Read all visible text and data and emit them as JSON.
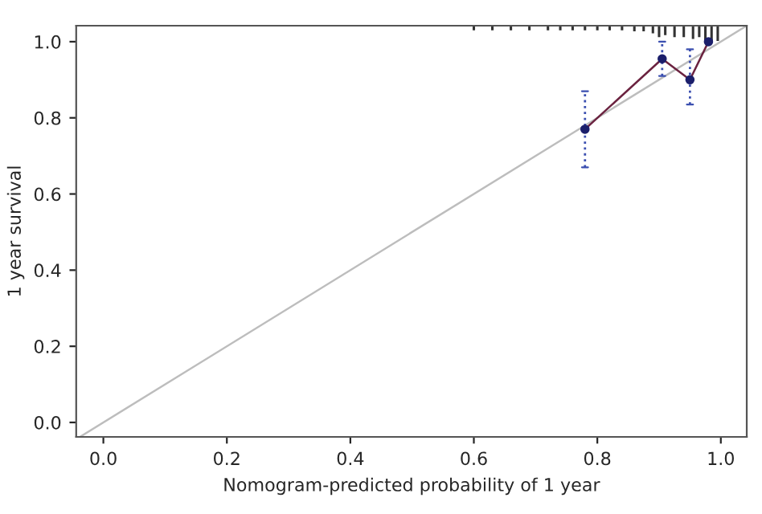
{
  "chart_data": {
    "type": "line",
    "xlabel": "Nomogram-predicted probability of 1 year",
    "ylabel": "1 year survival",
    "xlim": [
      -0.044,
      1.042
    ],
    "ylim": [
      -0.038,
      1.042
    ],
    "xticks": [
      {
        "value": 0,
        "label": "0.0"
      },
      {
        "value": 0.2,
        "label": "0.2"
      },
      {
        "value": 0.4,
        "label": "0.4"
      },
      {
        "value": 0.6,
        "label": "0.6"
      },
      {
        "value": 0.8,
        "label": "0.8"
      },
      {
        "value": 1,
        "label": "1.0"
      }
    ],
    "yticks": [
      {
        "value": 0,
        "label": "0.0"
      },
      {
        "value": 0.2,
        "label": "0.2"
      },
      {
        "value": 0.4,
        "label": "0.4"
      },
      {
        "value": 0.6,
        "label": "0.6"
      },
      {
        "value": 0.8,
        "label": "0.8"
      },
      {
        "value": 1,
        "label": "1.0"
      }
    ],
    "grid": false,
    "legend": false,
    "series": [
      {
        "color": "#bdbdbd",
        "x": [
          -0.038,
          1.042
        ],
        "values": [
          -0.038,
          1.042
        ],
        "marker": "none",
        "line_style": "solid"
      },
      {
        "color": "#6b2340",
        "x": [
          0.78,
          0.905,
          0.95,
          0.98
        ],
        "values": [
          0.77,
          0.955,
          0.9,
          1.0
        ],
        "marker": "none",
        "line_style": "solid"
      },
      {
        "type": "scatter",
        "color": "#1c1f6b",
        "x": [
          0.78,
          0.905,
          0.95,
          0.98
        ],
        "values": [
          0.77,
          0.955,
          0.9,
          1.0
        ],
        "marker": "circle",
        "errors": [
          [
            0.67,
            0.87
          ],
          [
            0.91,
            1.0
          ],
          [
            0.835,
            0.98
          ],
          null
        ]
      },
      {
        "type": "bar",
        "color": "#333333",
        "x": [
          0.6,
          0.63,
          0.66,
          0.69,
          0.72,
          0.74,
          0.76,
          0.78,
          0.8,
          0.82,
          0.84,
          0.86,
          0.875,
          0.89,
          0.9,
          0.91,
          0.925,
          0.94,
          0.955,
          0.965,
          0.975,
          0.985,
          0.995
        ],
        "base": [
          1.042,
          1.042,
          1.042,
          1.042,
          1.042,
          1.042,
          1.042,
          1.042,
          1.042,
          1.042,
          1.042,
          1.042,
          1.042,
          1.042,
          1.042,
          1.042,
          1.042,
          1.042,
          1.042,
          1.042,
          1.042,
          1.042,
          1.042
        ],
        "values": [
          -0.012,
          -0.012,
          -0.012,
          -0.012,
          -0.012,
          -0.012,
          -0.012,
          -0.012,
          -0.012,
          -0.012,
          -0.012,
          -0.015,
          -0.015,
          -0.02,
          -0.03,
          -0.025,
          -0.03,
          -0.03,
          -0.035,
          -0.03,
          -0.04,
          -0.045,
          -0.04
        ]
      }
    ]
  }
}
